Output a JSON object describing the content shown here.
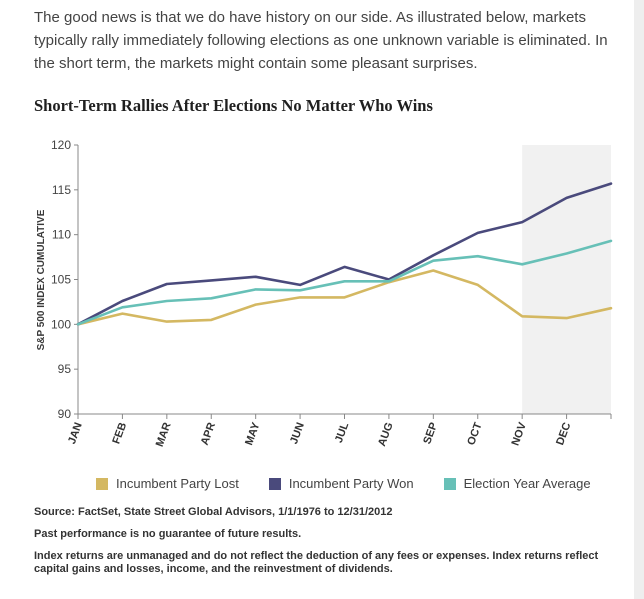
{
  "intro_text": "The good news is that we do have history on our side. As illustrated below, markets typically rally immediately following elections as one unknown variable is eliminated. In the short term, the markets might contain some pleasant surprises.",
  "chart_data": {
    "type": "line",
    "title": "Short-Term Rallies After Elections No Matter Who Wins",
    "ylabel": "S&P 500 INDEX CUMULATIVE",
    "xlabel": "",
    "categories": [
      "JAN",
      "FEB",
      "MAR",
      "APR",
      "MAY",
      "JUN",
      "JUL",
      "AUG",
      "SEP",
      "OCT",
      "NOV",
      "DEC",
      ""
    ],
    "ylim": [
      90,
      120
    ],
    "yticks": [
      90,
      95,
      100,
      105,
      110,
      115,
      120
    ],
    "highlight_range": [
      "NOV",
      ""
    ],
    "series": [
      {
        "name": "Incumbent Party Lost",
        "color": "#d4b862",
        "values": [
          100,
          101.2,
          100.3,
          100.5,
          102.2,
          103.0,
          103.0,
          104.7,
          106.0,
          104.4,
          100.9,
          100.7,
          101.8
        ]
      },
      {
        "name": "Incumbent Party Won",
        "color": "#4a4a7c",
        "values": [
          100,
          102.6,
          104.5,
          104.9,
          105.3,
          104.4,
          106.4,
          105.0,
          107.7,
          110.2,
          111.4,
          114.1,
          115.7
        ]
      },
      {
        "name": "Election Year Average",
        "color": "#67c0b7",
        "values": [
          100,
          101.9,
          102.6,
          102.9,
          103.9,
          103.8,
          104.8,
          104.8,
          107.1,
          107.6,
          106.7,
          107.9,
          109.3
        ]
      }
    ]
  },
  "notes": {
    "source": "Source: FactSet, State Street Global Advisors, 1/1/1976 to 12/31/2012",
    "disclaimer": "Past performance is no guarantee of future results.",
    "index_note": "Index returns are unmanaged and do not reflect the deduction of any fees or expenses. Index returns reflect capital gains and losses, income, and the reinvestment of dividends."
  }
}
